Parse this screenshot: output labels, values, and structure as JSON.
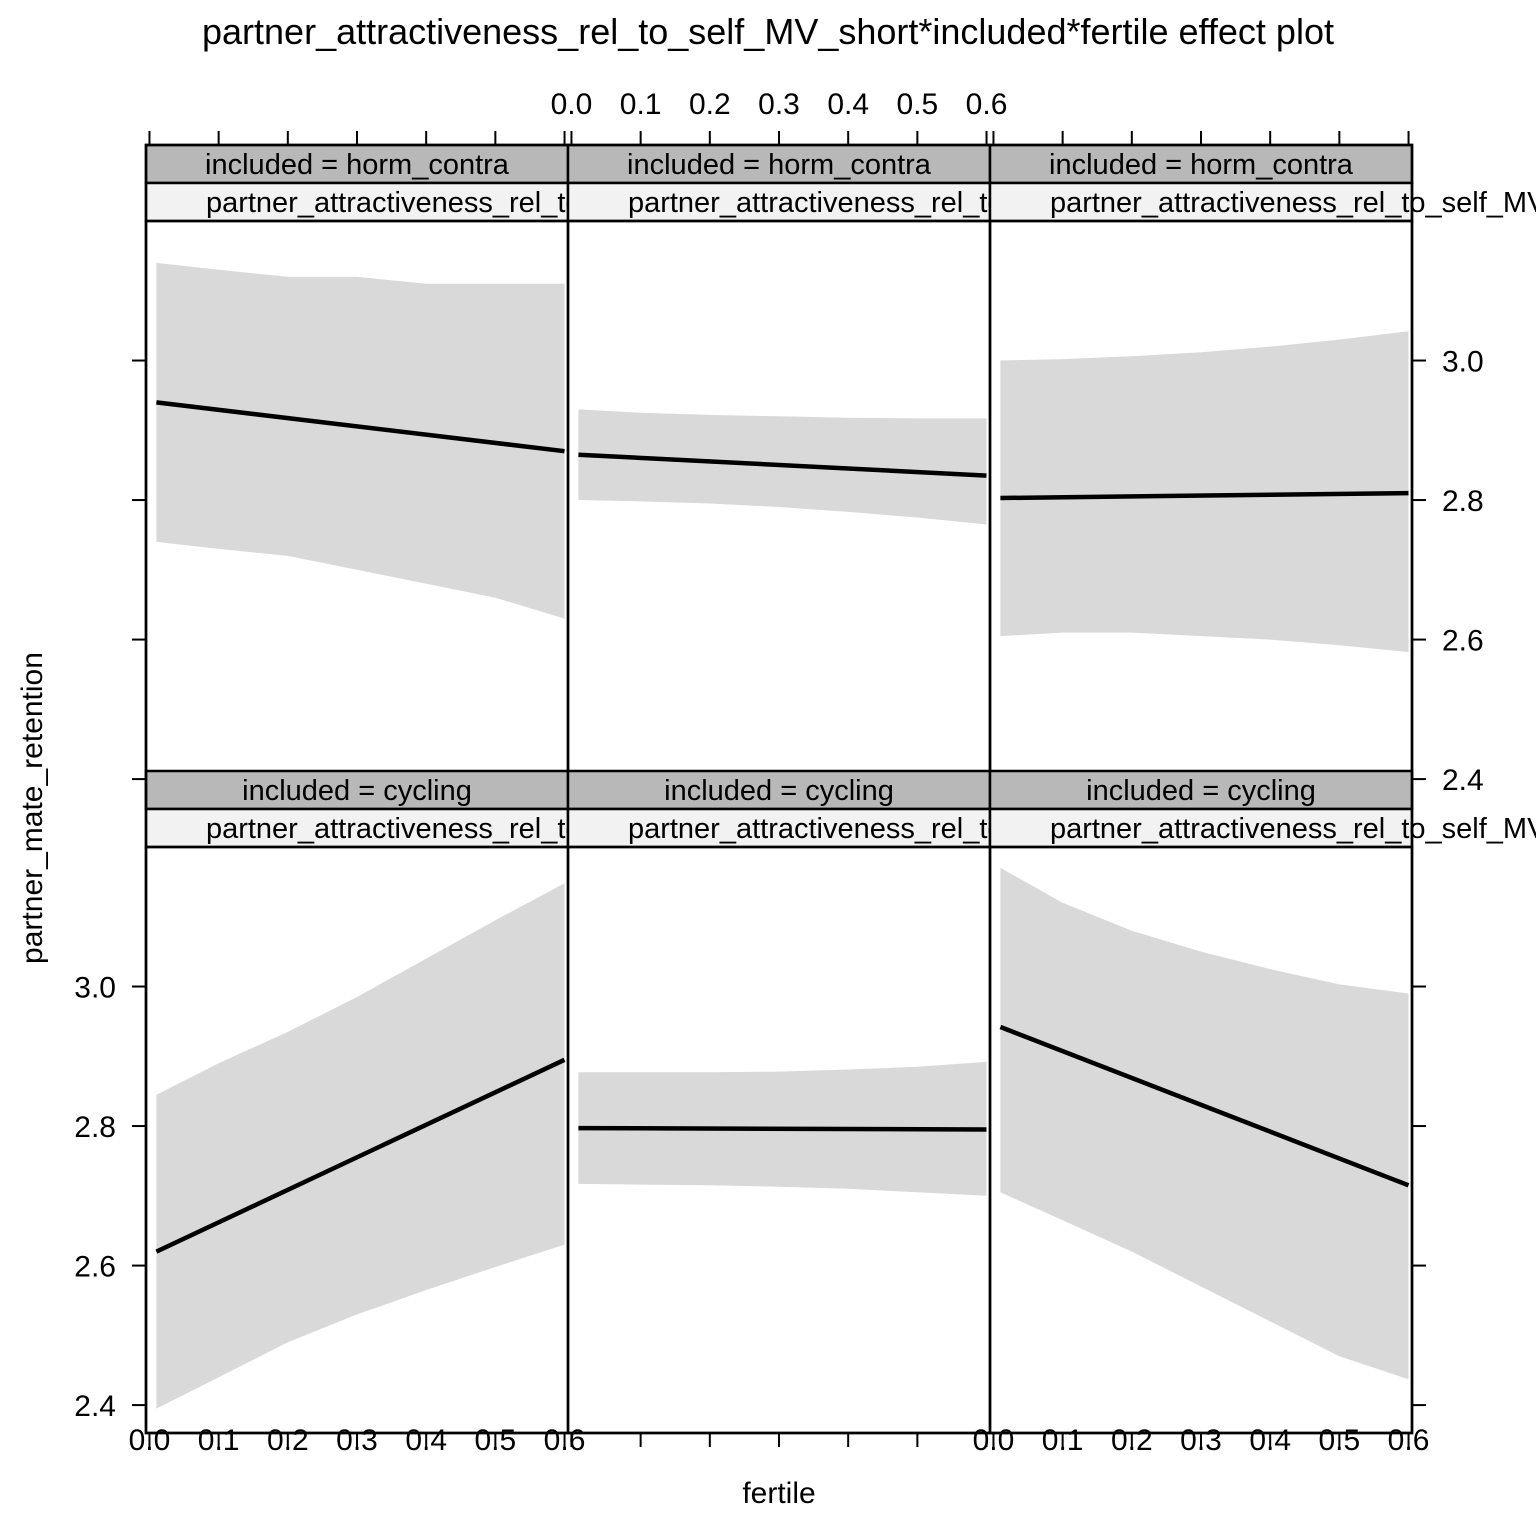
{
  "chart_data": {
    "type": "line",
    "title": "partner_attractiveness_rel_to_self_MV_short*included*fertile effect plot",
    "xlabel": "fertile",
    "ylabel": "partner_mate_retention",
    "xlim": [
      -0.005,
      0.605
    ],
    "ylim": [
      2.36,
      3.2
    ],
    "x_ticks": [
      "0.0",
      "0.1",
      "0.2",
      "0.3",
      "0.4",
      "0.5",
      "0.6"
    ],
    "y_ticks": [
      "2.4",
      "2.6",
      "2.8",
      "3.0"
    ],
    "conditioning_strip_label": "partner_attractiveness_rel_to_self_MV_short = ",
    "panels": [
      {
        "included_label": "included = horm_contra",
        "fit": [
          [
            0.01,
            2.94
          ],
          [
            0.6,
            2.87
          ]
        ],
        "band": {
          "x": [
            0.01,
            0.1,
            0.2,
            0.3,
            0.4,
            0.5,
            0.6
          ],
          "lower": [
            2.74,
            2.73,
            2.72,
            2.7,
            2.68,
            2.66,
            2.63
          ],
          "upper": [
            3.14,
            3.13,
            3.12,
            3.12,
            3.11,
            3.11,
            3.11
          ]
        }
      },
      {
        "included_label": "included = horm_contra",
        "fit": [
          [
            0.01,
            2.865
          ],
          [
            0.6,
            2.835
          ]
        ],
        "band": {
          "x": [
            0.01,
            0.1,
            0.2,
            0.3,
            0.4,
            0.5,
            0.6
          ],
          "lower": [
            2.8,
            2.798,
            2.795,
            2.79,
            2.783,
            2.775,
            2.765
          ],
          "upper": [
            2.93,
            2.925,
            2.922,
            2.92,
            2.918,
            2.917,
            2.917
          ]
        }
      },
      {
        "included_label": "included = horm_contra",
        "fit": [
          [
            0.01,
            2.803
          ],
          [
            0.6,
            2.81
          ]
        ],
        "band": {
          "x": [
            0.01,
            0.1,
            0.2,
            0.3,
            0.4,
            0.5,
            0.6
          ],
          "lower": [
            2.605,
            2.61,
            2.61,
            2.605,
            2.6,
            2.592,
            2.582
          ],
          "upper": [
            3.0,
            3.002,
            3.006,
            3.012,
            3.02,
            3.03,
            3.042
          ]
        }
      },
      {
        "included_label": "included = cycling",
        "fit": [
          [
            0.01,
            2.62
          ],
          [
            0.6,
            2.895
          ]
        ],
        "band": {
          "x": [
            0.01,
            0.1,
            0.2,
            0.3,
            0.4,
            0.5,
            0.6
          ],
          "lower": [
            2.395,
            2.44,
            2.49,
            2.53,
            2.565,
            2.598,
            2.63
          ],
          "upper": [
            2.845,
            2.89,
            2.935,
            2.985,
            3.04,
            3.095,
            3.148
          ]
        }
      },
      {
        "included_label": "included = cycling",
        "fit": [
          [
            0.01,
            2.797
          ],
          [
            0.6,
            2.795
          ]
        ],
        "band": {
          "x": [
            0.01,
            0.1,
            0.2,
            0.3,
            0.4,
            0.5,
            0.6
          ],
          "lower": [
            2.717,
            2.716,
            2.715,
            2.713,
            2.71,
            2.705,
            2.7
          ],
          "upper": [
            2.877,
            2.877,
            2.877,
            2.878,
            2.881,
            2.885,
            2.892
          ]
        }
      },
      {
        "included_label": "included = cycling",
        "fit": [
          [
            0.01,
            2.942
          ],
          [
            0.6,
            2.715
          ]
        ],
        "band": {
          "x": [
            0.01,
            0.1,
            0.2,
            0.3,
            0.4,
            0.5,
            0.6
          ],
          "lower": [
            2.705,
            2.665,
            2.62,
            2.57,
            2.52,
            2.47,
            2.437
          ],
          "upper": [
            3.17,
            3.12,
            3.08,
            3.05,
            3.025,
            3.003,
            2.99
          ]
        }
      }
    ]
  }
}
